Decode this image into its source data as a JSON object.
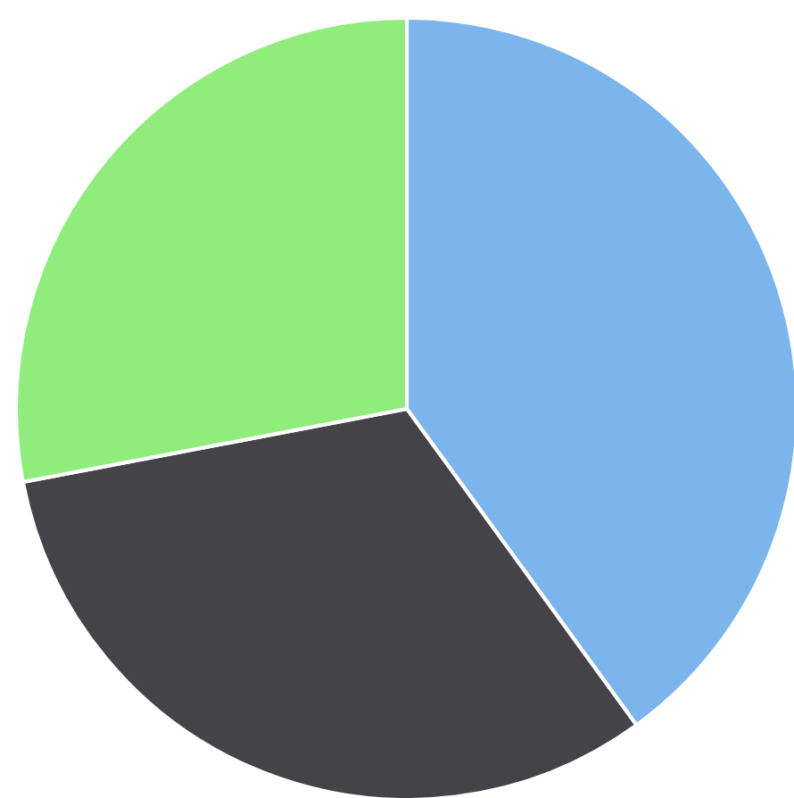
{
  "chart_data": {
    "type": "pie",
    "categories": [
      null,
      null,
      null
    ],
    "values": [
      40,
      32,
      28
    ],
    "colors": [
      "#7cb5ec",
      "#434348",
      "#90ed7d"
    ]
  }
}
